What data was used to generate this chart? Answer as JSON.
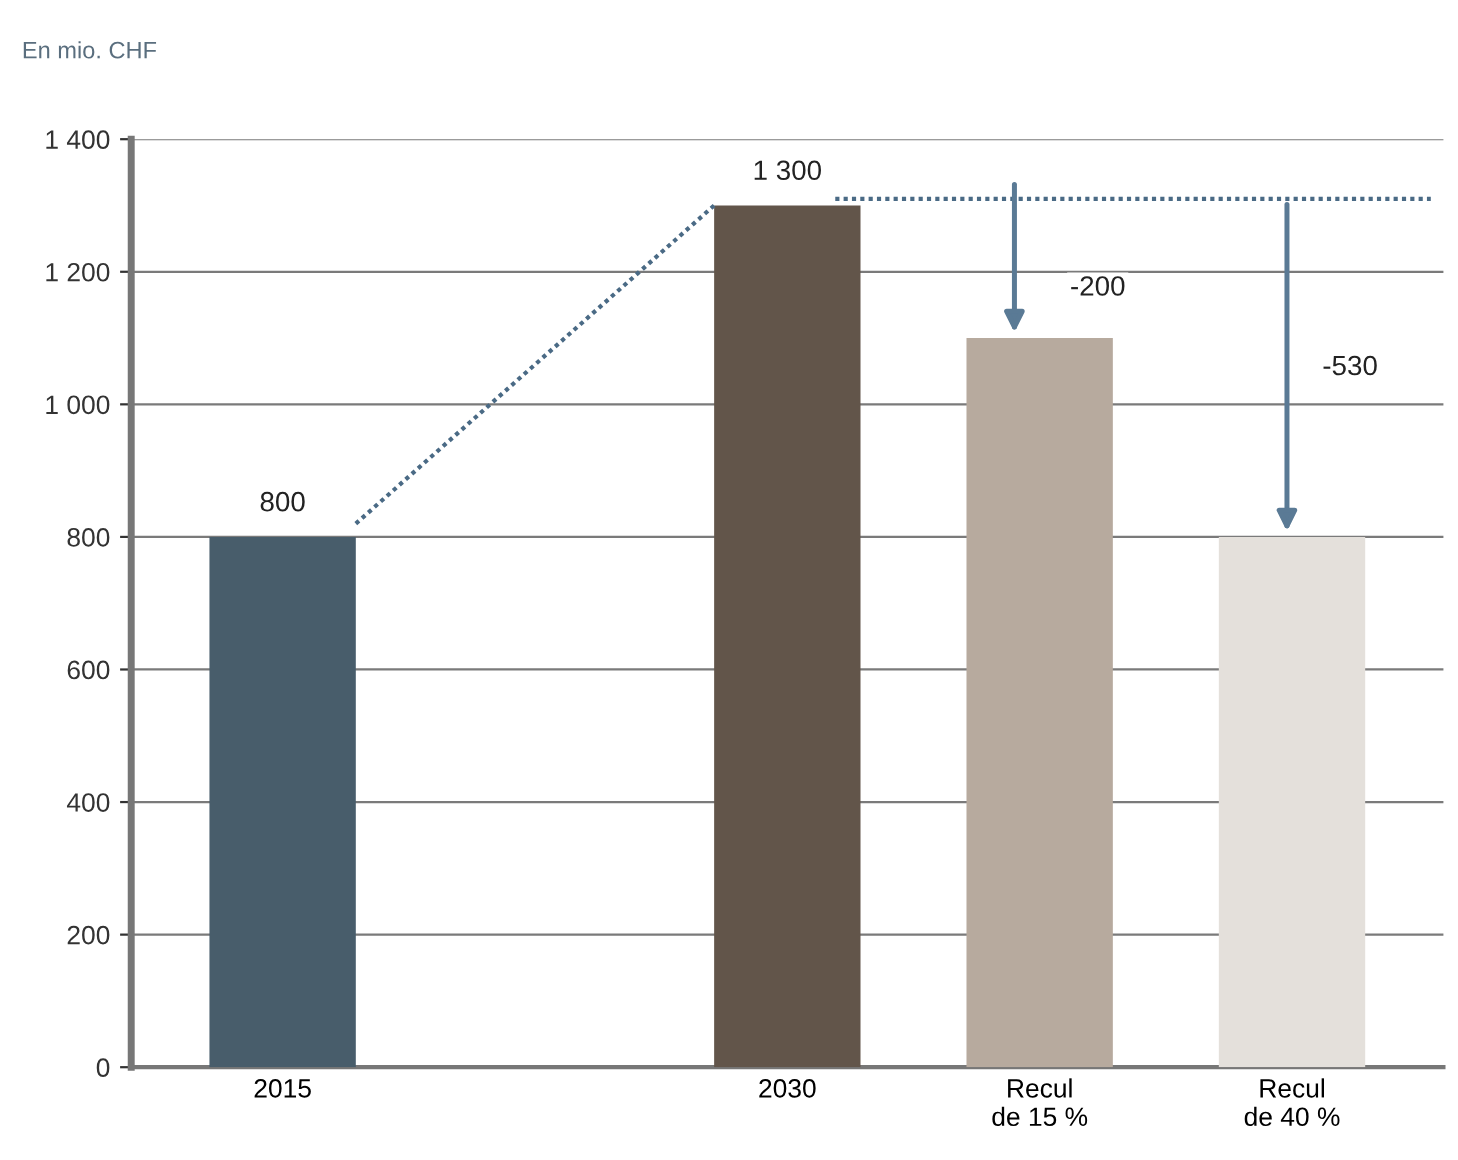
{
  "chart_data": {
    "type": "bar",
    "ylabel": "En mio. CHF",
    "categories": [
      "2015",
      null,
      "2030",
      "Recul\nde 15 %",
      "Recul\nde 40 %"
    ],
    "values": [
      800,
      null,
      1300,
      1100,
      800
    ],
    "colors": [
      "#485d6b",
      "#bbbbbb",
      "#62554a",
      "#b7aa9e",
      "#e4e0db"
    ],
    "value_labels": [
      "800",
      null,
      "1 300",
      null,
      null
    ],
    "ylim": [
      0,
      1400
    ],
    "yticks": [
      0,
      200,
      400,
      600,
      800,
      {
        "value": 1000,
        "label": "1 000"
      },
      {
        "value": 1200,
        "label": "1 200"
      },
      {
        "value": 1400,
        "label": "1 400"
      }
    ],
    "grid": "y",
    "annotations": [
      "-200",
      "-530"
    ]
  }
}
